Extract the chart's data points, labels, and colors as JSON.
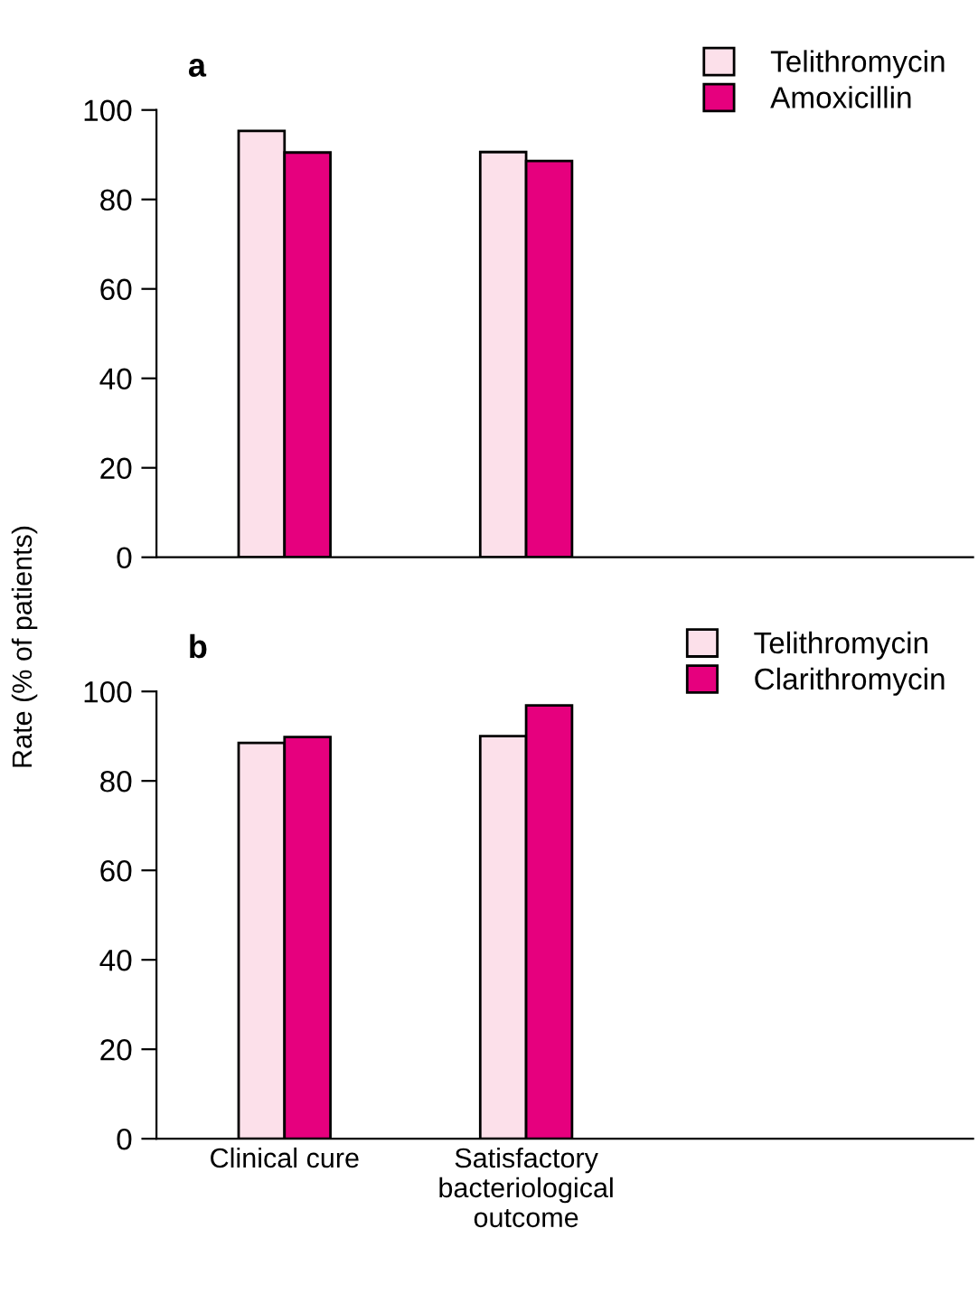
{
  "chart_data": [
    {
      "type": "bar",
      "title": "a",
      "ylabel": "Rate (% of patients)",
      "categories": [
        null,
        null
      ],
      "series": [
        {
          "name": "Telithromycin",
          "color": "#fce0ea",
          "values": [
            95.3,
            90.6
          ]
        },
        {
          "name": "Amoxicillin",
          "color": "#e6007e",
          "values": [
            90.5,
            88.6
          ]
        }
      ],
      "ylim": [
        0,
        100
      ],
      "yticks": [
        0,
        20,
        40,
        60,
        80,
        100
      ],
      "legend": "top right",
      "tick_labels": "y",
      "grid": false
    },
    {
      "type": "bar",
      "title": "b",
      "categories": [
        "Clinical cure",
        "Satisfactory\nbacteriological\noutcome"
      ],
      "series": [
        {
          "name": "Telithromycin",
          "color": "#fce0ea",
          "values": [
            88.5,
            90.0
          ]
        },
        {
          "name": "Clarithromycin",
          "color": "#e6007e",
          "values": [
            89.8,
            96.9
          ]
        }
      ],
      "ylim": [
        0,
        100
      ],
      "yticks": [
        0,
        20,
        40,
        60,
        80,
        100
      ],
      "legend": "top right",
      "grid": false
    }
  ]
}
